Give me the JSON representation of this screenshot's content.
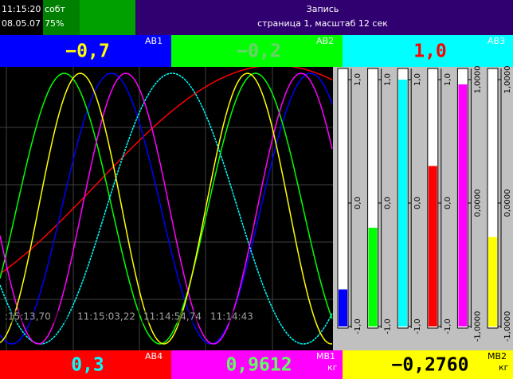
{
  "header": {
    "time": "11:15:20",
    "date": "08.05.07",
    "events": "собт",
    "memory": "75%",
    "title": "Запись",
    "subtitle": "страница 1, масштаб 12 сек"
  },
  "channels": [
    {
      "name": "АВ1",
      "label": "−0,7",
      "value": -0.7,
      "color": "#0000ff",
      "text_color": "#ffff00"
    },
    {
      "name": "АВ2",
      "label": "−0,2",
      "value": -0.2,
      "color": "#00ff00",
      "text_color": "#70d070"
    },
    {
      "name": "АВ3",
      "label": "1,0",
      "value": 1.0,
      "color": "#00ffff",
      "text_color": "#ff0000"
    },
    {
      "name": "АВ4",
      "label": "0,3",
      "value": 0.3,
      "color": "#ff0000",
      "text_color": "#00ffff"
    },
    {
      "name": "МВ1",
      "unit": "кг",
      "label": "0,9612",
      "value": 0.9612,
      "color": "#ff00ff",
      "text_color": "#60ff60"
    },
    {
      "name": "МВ2",
      "unit": "кг",
      "label": "−0,2760",
      "value": -0.276,
      "color": "#ffff00",
      "text_color": "#000000"
    }
  ],
  "time_labels": [
    ":15:13,70",
    "11:15:03,22",
    "11:14:54,74",
    "11:14:43"
  ],
  "bars": [
    {
      "lim": [
        -1,
        1
      ],
      "ticks": [
        {
          "value": 1,
          "label": "1,0"
        },
        {
          "value": 0,
          "label": "0,0"
        },
        {
          "value": -1,
          "label": "-1,0"
        }
      ]
    },
    {
      "lim": [
        -1,
        1
      ],
      "ticks": [
        {
          "value": 1,
          "label": "1,0"
        },
        {
          "value": 0,
          "label": "0,0"
        },
        {
          "value": -1,
          "label": "-1,0"
        }
      ]
    },
    {
      "lim": [
        -1,
        1
      ],
      "ticks": [
        {
          "value": 1,
          "label": "1,0"
        },
        {
          "value": 0,
          "label": "0,0"
        },
        {
          "value": -1,
          "label": "-1,0"
        }
      ]
    },
    {
      "lim": [
        -1,
        1
      ],
      "ticks": [
        {
          "value": 1,
          "label": "1,0"
        },
        {
          "value": 0,
          "label": "0,0"
        },
        {
          "value": -1,
          "label": "-1,0"
        }
      ]
    },
    {
      "lim": [
        -1,
        1
      ],
      "ticks": [
        {
          "value": 1,
          "label": "1,0000"
        },
        {
          "value": 0,
          "label": "0,0000"
        },
        {
          "value": -1,
          "label": "-1,0000"
        }
      ]
    },
    {
      "lim": [
        -1,
        1
      ],
      "ticks": [
        {
          "value": 1,
          "label": "1,0000"
        },
        {
          "value": 0,
          "label": "0,0000"
        },
        {
          "value": -1,
          "label": "-1,0000"
        }
      ]
    }
  ]
}
